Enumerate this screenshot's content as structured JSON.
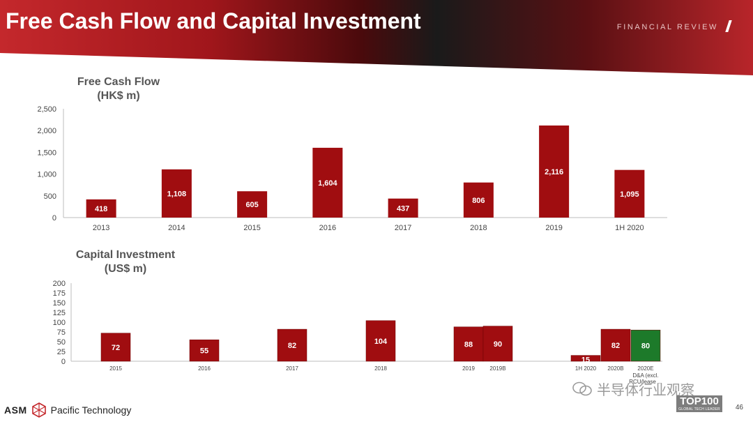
{
  "header": {
    "title": "Free Cash Flow and Capital Investment",
    "section": "FINANCIAL REVIEW"
  },
  "colors": {
    "bar_red": "#a00d10",
    "bar_green": "#1d7a2a",
    "axis_text": "#444444"
  },
  "chart_data": [
    {
      "type": "bar",
      "title_line1": "Free Cash Flow",
      "title_line2": "(HK$ m)",
      "categories": [
        "2013",
        "2014",
        "2015",
        "2016",
        "2017",
        "2018",
        "2019",
        "1H 2020"
      ],
      "values": [
        418,
        1108,
        605,
        1604,
        437,
        806,
        2116,
        1095
      ],
      "value_labels": [
        "418",
        "1,108",
        "605",
        "1,604",
        "437",
        "806",
        "2,116",
        "1,095"
      ],
      "ylim": [
        0,
        2500
      ],
      "yticks": [
        0,
        500,
        1000,
        1500,
        2000,
        2500
      ],
      "ytick_labels": [
        "0",
        "500",
        "1,000",
        "1,500",
        "2,000",
        "2,500"
      ],
      "grid": false
    },
    {
      "type": "bar",
      "title_line1": "Capital Investment",
      "title_line2": "(US$ m)",
      "categories": [
        "2015",
        "2016",
        "2017",
        "2018",
        "2019",
        "2019B",
        "1H 2020",
        "2020B",
        "2020E"
      ],
      "category_notes": [
        "",
        "",
        "",
        "",
        "",
        "",
        "",
        "",
        "D&A (excl. RCU/lease ..."
      ],
      "values": [
        72,
        55,
        82,
        104,
        88,
        90,
        15,
        82,
        80
      ],
      "value_labels": [
        "72",
        "55",
        "82",
        "104",
        "88",
        "90",
        "15",
        "82",
        "80"
      ],
      "bar_colors": [
        "red",
        "red",
        "red",
        "red",
        "red",
        "red",
        "red",
        "red",
        "green"
      ],
      "ylim": [
        0,
        200
      ],
      "yticks": [
        0,
        25,
        50,
        75,
        100,
        125,
        150,
        175,
        200
      ],
      "ytick_labels": [
        "0",
        "25",
        "50",
        "75",
        "100",
        "125",
        "150",
        "175",
        "200"
      ],
      "grid": false
    }
  ],
  "footer": {
    "logo_text": "ASM",
    "company": "Pacific Technology",
    "watermark": "半导体行业观察",
    "badge_main": "TOP100",
    "badge_sub": "GLOBAL TECH LEADER",
    "page_number": "46"
  }
}
